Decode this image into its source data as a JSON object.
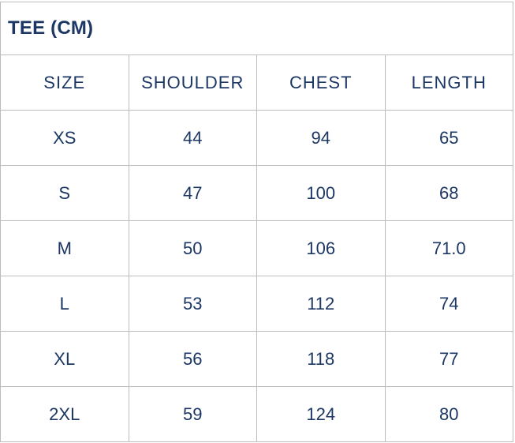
{
  "title": "TEE (CM)",
  "colors": {
    "text": "#1c3764",
    "border": "#bcbcbc",
    "background": "#ffffff"
  },
  "chart_data": {
    "type": "table",
    "title": "TEE (CM)",
    "columns": [
      "SIZE",
      "SHOULDER",
      "CHEST",
      "LENGTH"
    ],
    "rows": [
      [
        "XS",
        "44",
        "94",
        "65"
      ],
      [
        "S",
        "47",
        "100",
        "68"
      ],
      [
        "M",
        "50",
        "106",
        "71.0"
      ],
      [
        "L",
        "53",
        "112",
        "74"
      ],
      [
        "XL",
        "56",
        "118",
        "77"
      ],
      [
        "2XL",
        "59",
        "124",
        "80"
      ]
    ],
    "layout_hints": {
      "title_align": "left",
      "cell_align": "center",
      "grid": "full-borders",
      "column_count": 4,
      "row_count": 6
    }
  }
}
